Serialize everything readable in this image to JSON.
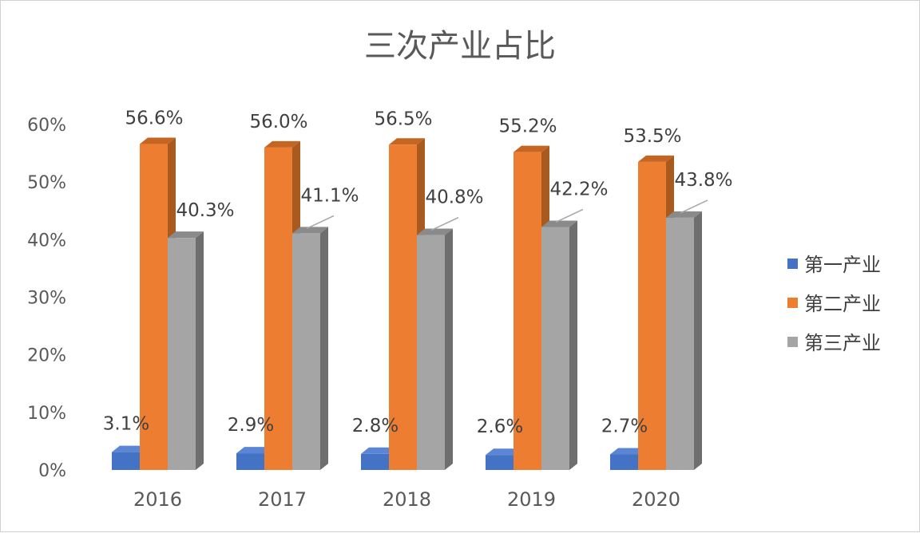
{
  "chart_data": {
    "type": "bar",
    "title": "三次产业占比",
    "categories": [
      "2016",
      "2017",
      "2018",
      "2019",
      "2020"
    ],
    "series": [
      {
        "name": "第一产业",
        "values": [
          3.1,
          2.9,
          2.8,
          2.6,
          2.7
        ],
        "labels": [
          "3.1%",
          "2.9%",
          "2.8%",
          "2.6%",
          "2.7%"
        ]
      },
      {
        "name": "第二产业",
        "values": [
          56.6,
          56.0,
          56.5,
          55.2,
          53.5
        ],
        "labels": [
          "56.6%",
          "56.0%",
          "56.5%",
          "55.2%",
          "53.5%"
        ]
      },
      {
        "name": "第三产业",
        "values": [
          40.3,
          41.1,
          40.8,
          42.2,
          43.8
        ],
        "labels": [
          "40.3%",
          "41.1%",
          "40.8%",
          "42.2%",
          "43.8%"
        ]
      }
    ],
    "yticks": [
      "0%",
      "10%",
      "20%",
      "30%",
      "40%",
      "50%",
      "60%"
    ],
    "ylim": [
      0,
      60
    ],
    "grid": false,
    "legend": "right",
    "style": "3d-column"
  },
  "colors": {
    "series": [
      {
        "front": "#4472c4",
        "side": "#2f5597",
        "top": "#5b86d6"
      },
      {
        "front": "#ed7d31",
        "side": "#a85a1f",
        "top": "#c46522"
      },
      {
        "front": "#a5a5a5",
        "side": "#6e6e6e",
        "top": "#8a8a8a"
      }
    ],
    "text": "#595959",
    "leader": "#a6a6a6"
  }
}
